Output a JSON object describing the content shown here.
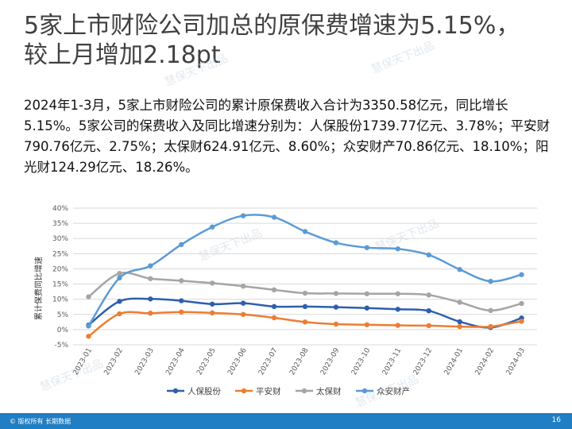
{
  "title": {
    "line1": "5家上市财险公司加总的原保费增速为5.15%，",
    "line2": "较上月增加2.18pt"
  },
  "body": {
    "paragraph": "2024年1-3月，5家上市财险公司的累计原保费收入合计为3350.58亿元，同比增长5.15%。5家公司的保费收入及同比增速分别为：人保股份1739.77亿元、3.78%；平安财790.76亿元、2.75%；太保财624.91亿元、8.60%；众安财产70.86亿元、18.10%；阳光财124.29亿元、18.26%。"
  },
  "watermark": {
    "text": "慧保天下出品"
  },
  "footer": {
    "copyright": "© 版权所有 长期数据",
    "page_number": "16"
  },
  "chart_data": {
    "type": "line",
    "ylabel": "累计保费同比增速",
    "ylim": [
      -5,
      40
    ],
    "yticks": [
      "-5%",
      "0%",
      "5%",
      "10%",
      "15%",
      "20%",
      "25%",
      "30%",
      "35%",
      "40%"
    ],
    "ytick_values": [
      -5,
      0,
      5,
      10,
      15,
      20,
      25,
      30,
      35,
      40
    ],
    "grid": true,
    "legend_position": "bottom",
    "categories": [
      "2023-01",
      "2023-02",
      "2023-03",
      "2023-04",
      "2023-05",
      "2023-06",
      "2023-07",
      "2023-08",
      "2023-09",
      "2023-10",
      "2023-11",
      "2023-12",
      "2024-01",
      "2024-02",
      "2024-03"
    ],
    "series": [
      {
        "name": "人保股份",
        "color": "#2e5fae",
        "values": [
          1.5,
          9.3,
          10.1,
          9.5,
          8.4,
          8.7,
          7.6,
          7.6,
          7.4,
          7.1,
          6.7,
          6.2,
          2.6,
          0.7,
          3.8
        ]
      },
      {
        "name": "平安财",
        "color": "#ed7d31",
        "values": [
          -2.2,
          5.2,
          5.4,
          5.8,
          5.5,
          5.0,
          3.9,
          2.5,
          1.8,
          1.6,
          1.4,
          1.3,
          1.0,
          1.0,
          2.75
        ]
      },
      {
        "name": "太保财",
        "color": "#a5a5a5",
        "values": [
          10.8,
          18.5,
          16.8,
          16.1,
          15.3,
          14.3,
          13.1,
          12.0,
          11.9,
          11.8,
          11.8,
          11.4,
          9.0,
          6.3,
          8.6
        ]
      },
      {
        "name": "众安财产",
        "color": "#5b9bd5",
        "values": [
          1.2,
          17.0,
          21.0,
          28.0,
          33.8,
          37.5,
          37.0,
          32.3,
          28.6,
          27.0,
          26.6,
          24.6,
          19.8,
          15.9,
          18.1
        ]
      }
    ]
  }
}
